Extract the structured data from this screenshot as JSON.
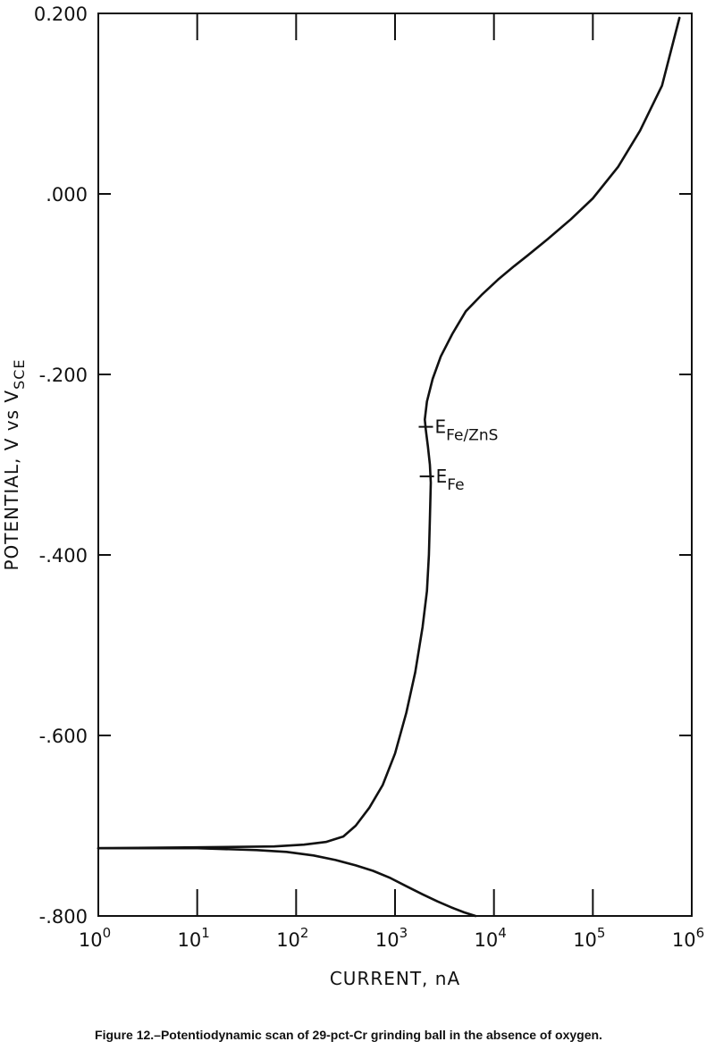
{
  "caption": "Figure 12.–Potentiodynamic scan of 29-pct-Cr grinding ball in the absence of oxygen.",
  "chart_data": {
    "type": "line",
    "title": "",
    "xlabel": "CURRENT, nA",
    "ylabel_main": "POTENTIAL, V vs V",
    "ylabel_sub": "SCE",
    "x_scale": "log",
    "xlim": [
      1,
      1000000
    ],
    "ylim": [
      -0.8,
      0.2
    ],
    "grid": false,
    "x_ticks": [
      {
        "value": 1,
        "base": "10",
        "exp": "0"
      },
      {
        "value": 10,
        "base": "10",
        "exp": "1"
      },
      {
        "value": 100,
        "base": "10",
        "exp": "2"
      },
      {
        "value": 1000,
        "base": "10",
        "exp": "3"
      },
      {
        "value": 10000,
        "base": "10",
        "exp": "4"
      },
      {
        "value": 100000,
        "base": "10",
        "exp": "5"
      },
      {
        "value": 1000000,
        "base": "10",
        "exp": "6"
      }
    ],
    "y_ticks": [
      {
        "value": 0.2,
        "label": "0.200"
      },
      {
        "value": 0.0,
        "label": ".000"
      },
      {
        "value": -0.2,
        "label": "-.200"
      },
      {
        "value": -0.4,
        "label": "-.400"
      },
      {
        "value": -0.6,
        "label": "-.600"
      },
      {
        "value": -0.8,
        "label": "-.800"
      }
    ],
    "series": [
      {
        "id": "anodic-branch",
        "x": [
          1,
          10,
          60,
          120,
          200,
          300,
          400,
          550,
          750,
          1000,
          1300,
          1600,
          1900,
          2100,
          2200,
          2250,
          2300,
          2250,
          2150,
          2050,
          2000,
          2100,
          2400,
          2900,
          3800,
          5200,
          7500,
          11000,
          16000,
          22000,
          35000,
          60000,
          100000,
          180000,
          300000,
          500000,
          750000
        ],
        "y": [
          -0.725,
          -0.724,
          -0.723,
          -0.721,
          -0.718,
          -0.712,
          -0.7,
          -0.68,
          -0.655,
          -0.62,
          -0.575,
          -0.53,
          -0.48,
          -0.44,
          -0.4,
          -0.36,
          -0.32,
          -0.3,
          -0.28,
          -0.262,
          -0.25,
          -0.23,
          -0.205,
          -0.18,
          -0.155,
          -0.13,
          -0.112,
          -0.095,
          -0.08,
          -0.068,
          -0.05,
          -0.028,
          -0.005,
          0.03,
          0.07,
          0.12,
          0.195
        ]
      },
      {
        "id": "cathodic-branch",
        "x": [
          1,
          10,
          40,
          80,
          150,
          250,
          400,
          600,
          900,
          1300,
          1900,
          2700,
          3800,
          5000,
          6500
        ],
        "y": [
          -0.725,
          -0.725,
          -0.727,
          -0.729,
          -0.733,
          -0.738,
          -0.744,
          -0.75,
          -0.758,
          -0.767,
          -0.776,
          -0.784,
          -0.791,
          -0.796,
          -0.8
        ]
      }
    ],
    "annotations": [
      {
        "id": "E_Fe_ZnS",
        "base": "E",
        "sub": "Fe/ZnS",
        "x": 2050,
        "y": -0.258
      },
      {
        "id": "E_Fe",
        "base": "E",
        "sub": "Fe",
        "x": 2100,
        "y": -0.313
      }
    ]
  }
}
